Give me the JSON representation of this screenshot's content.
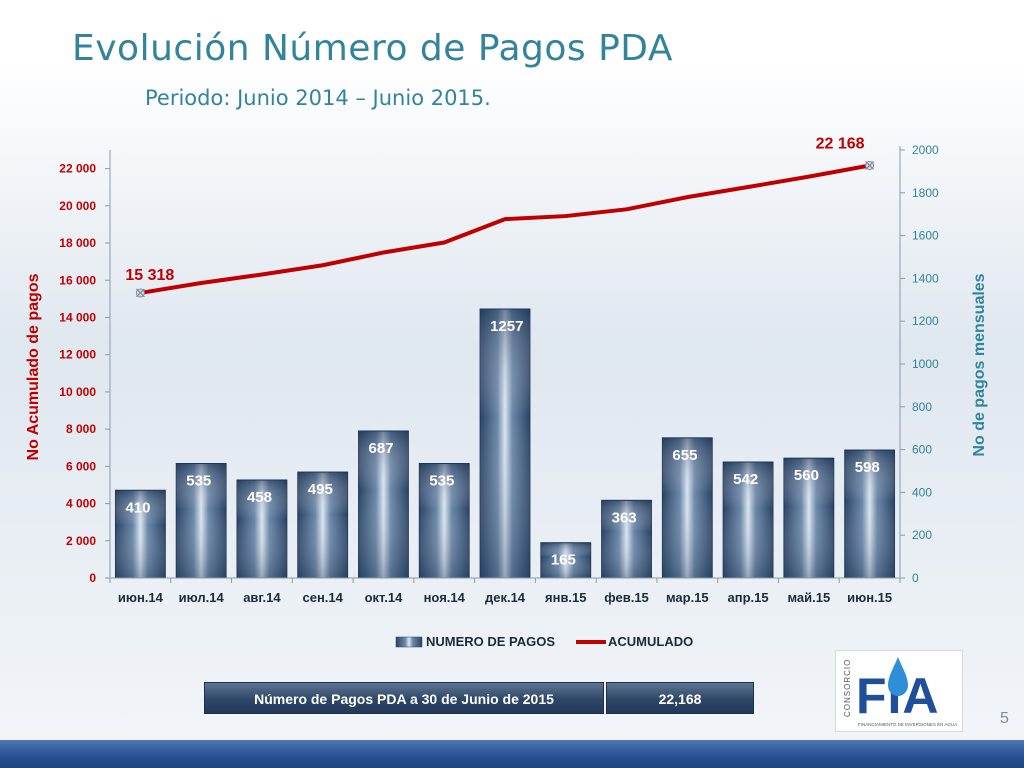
{
  "title": "Evolución Número de Pagos PDA",
  "subtitle": "Periodo: Junio 2014 – Junio 2015.",
  "chart_data": {
    "type": "bar",
    "categories": [
      "июн.14",
      "июл.14",
      "авг.14",
      "сен.14",
      "окт.14",
      "ноя.14",
      "дек.14",
      "янв.15",
      "фев.15",
      "мар.15",
      "апр.15",
      "май.15",
      "июн.15"
    ],
    "series": [
      {
        "name": "NUMERO DE PAGOS",
        "type": "bar",
        "axis": "right",
        "values": [
          410,
          535,
          458,
          495,
          687,
          535,
          1257,
          165,
          363,
          655,
          542,
          560,
          598
        ]
      },
      {
        "name": "ACUMULADO",
        "type": "line",
        "axis": "left",
        "values": [
          15318,
          15853,
          16311,
          16806,
          17493,
          18028,
          19285,
          19450,
          19813,
          20468,
          21010,
          21570,
          22168
        ]
      }
    ],
    "first_label": "15 318",
    "last_label": "22 168",
    "y_left_label": "No Acumulado de pagos",
    "y_right_label": "No de pagos mensuales",
    "y_left_ticks": [
      "0",
      "2 000",
      "4 000",
      "6 000",
      "8 000",
      "10 000",
      "12 000",
      "14 000",
      "16 000",
      "18 000",
      "20 000",
      "22 000"
    ],
    "y_right_ticks": [
      "0",
      "200",
      "400",
      "600",
      "800",
      "1000",
      "1200",
      "1400",
      "1600",
      "1800",
      "2000"
    ],
    "ylim_left": [
      0,
      23000
    ],
    "ylim_right": [
      0,
      2000
    ],
    "colors": {
      "bar": "#3a5a80",
      "line": "#c00000",
      "left_axis": "#c00000",
      "right_axis": "#31849b"
    }
  },
  "legend": {
    "bars": "NUMERO DE PAGOS",
    "line": "ACUMULADO"
  },
  "summary": {
    "label": "Número de Pagos PDA a 30 de Junio de 2015",
    "value": "22,168"
  },
  "logo": {
    "vertical_text": "CONSORCIO",
    "letters": "FIA",
    "tagline": "FINANCIAMIENTO DE INVERSIONES EN AGUA"
  },
  "page_number": "5"
}
